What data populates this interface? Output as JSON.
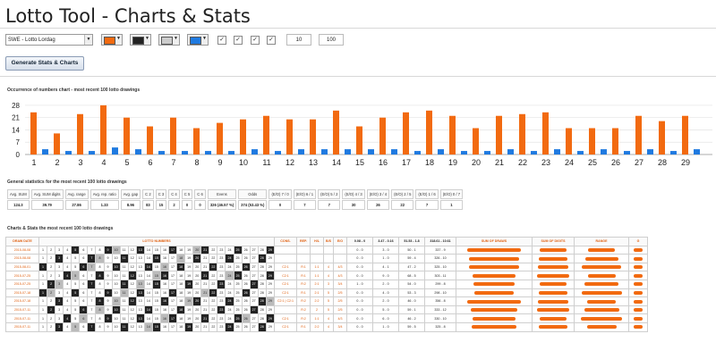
{
  "app": {
    "title": "Lotto Tool - Charts & Stats"
  },
  "controls": {
    "lottery_select": "SWE - Lotto Lordag",
    "colors": [
      "#f26a10",
      "#222222",
      "#cccccc",
      "#1f7ae0"
    ],
    "checkbox_mark": "✓",
    "field1": "10",
    "field2": "100",
    "generate_label": "Generate Stats & Charts",
    "dropdown_arrow": "▼"
  },
  "sections": {
    "chart_title": "Occurrence of numbers chart - most recent 100 lotto drawings",
    "stats_title": "General statistics for the most recent 100 lotto drawings",
    "table_title": "Charts & Stats the most recent 100 lotto drawings"
  },
  "chart_data": {
    "type": "bar",
    "categories": [
      "1",
      "2",
      "3",
      "4",
      "5",
      "6",
      "7",
      "8",
      "9",
      "10",
      "11",
      "12",
      "13",
      "14",
      "15",
      "16",
      "17",
      "18",
      "19",
      "20",
      "21",
      "22",
      "23",
      "24",
      "25",
      "26",
      "27",
      "28",
      "29"
    ],
    "series": [
      {
        "values": [
          24,
          12,
          23,
          28,
          21,
          16,
          21,
          15,
          18,
          20,
          22,
          20,
          20,
          25,
          16,
          21,
          24,
          25,
          22,
          15,
          22,
          23,
          24,
          15,
          15,
          15,
          22,
          19,
          22
        ],
        "color": "#f26a10"
      },
      {
        "values": [
          3,
          2,
          2,
          4,
          3,
          2,
          2,
          2,
          2,
          3,
          2,
          3,
          3,
          3,
          3,
          3,
          2,
          3,
          2,
          2,
          3,
          2,
          3,
          2,
          3,
          2,
          3,
          2,
          3
        ],
        "color": "#1f7ae0"
      }
    ],
    "yticks": [
      0,
      7,
      14,
      21,
      28
    ],
    "ylim": [
      0,
      30
    ]
  },
  "stats": {
    "headers": [
      "Avg. SUM",
      "Avg. SUM digits",
      "Avg. range",
      "Avg. rep. ratio",
      "Avg. gap",
      "C 2",
      "C 3",
      "C 4",
      "C 5",
      "C 6",
      "Evens",
      "Odds",
      "(E/O) 7 / 0",
      "(E/O) 6 / 1",
      "(E/O) 5 / 2",
      "(E/O) 4 / 3",
      "(E/O) 3 / 4",
      "(E/O) 2 / 5",
      "(E/O) 1 / 6",
      "(E/O) 0 / 7"
    ],
    "values": [
      "124.3",
      "39.79",
      "27.86",
      "1.33",
      "8.96",
      "83",
      "15",
      "2",
      "0",
      "0",
      "326 (46.57 %)",
      "374 (53.43 %)",
      "0",
      "7",
      "7",
      "30",
      "26",
      "22",
      "7",
      "1"
    ]
  },
  "table": {
    "headers": {
      "date": "DRAW DATE",
      "numbers": "LOTTO NUMBERS",
      "cons": "CONS.",
      "rep": "REP.",
      "hl": "H/L",
      "bs": "B/S",
      "eo": "E/O",
      "r1": "0.08 - 0",
      "r2": "3.47 - 0.16",
      "r3": "51.53 - 1.8",
      "r4": "318.61 - 10.61",
      "sum": "SUM OF DRAWS",
      "sumd": "SUM OF DIGITS",
      "range": "RANGE",
      "gap": "G"
    },
    "rows": [
      {
        "date": "2015-08-08",
        "cons": "",
        "rep": "",
        "hl": "",
        "bs": "",
        "eo": "",
        "a": "0 - 0",
        "b": "3 - 0",
        "c": "50 - 1",
        "d": "337 - 9",
        "sum": "",
        "sumd": "",
        "rng": ""
      },
      {
        "date": "2015-08-08",
        "cons": "",
        "rep": "",
        "hl": "",
        "bs": "",
        "eo": "",
        "a": "0 - 0",
        "b": "1 - 0",
        "c": "59 - 4",
        "d": "326 - 10",
        "sum": "",
        "sumd": "",
        "rng": ""
      },
      {
        "date": "2015-08-01",
        "cons": "C2:1",
        "rep": "R:1",
        "hl": "1:1",
        "bs": "4",
        "eo": "4/3",
        "a": "0 - 0",
        "b": "4 - 1",
        "c": "47 - 2",
        "d": "325 - 10",
        "sum": "",
        "sumd": "",
        "rng": ""
      },
      {
        "date": "2015-07-25",
        "cons": "C2:1",
        "rep": "R:1",
        "hl": "1:1",
        "bs": "4",
        "eo": "4/3",
        "a": "0 - 0",
        "b": "9 - 0",
        "c": "68 - 5",
        "d": "303 - 11",
        "sum": "",
        "sumd": "",
        "rng": ""
      },
      {
        "date": "2015-07-25",
        "cons": "C2:1",
        "rep": "R:2",
        "hl": "2:1",
        "bs": "3",
        "eo": "3/4",
        "a": "1 - 0",
        "b": "2 - 0",
        "c": "54 - 0",
        "d": "299 - 8",
        "sum": "",
        "sumd": "",
        "rng": ""
      },
      {
        "date": "2015-07-18",
        "cons": "C2:1",
        "rep": "R:1",
        "hl": "2:1",
        "bs": "5",
        "eo": "2/5",
        "a": "0 - 0",
        "b": "4 - 0",
        "c": "53 - 3",
        "d": "298 - 10",
        "sum": "",
        "sumd": "",
        "rng": ""
      },
      {
        "date": "2015-07-18",
        "cons": "C2:1 | C2:1",
        "rep": "R:2",
        "hl": "2:2",
        "bs": "5",
        "eo": "2/5",
        "a": "0 - 0",
        "b": "2 - 0",
        "c": "46 - 0",
        "d": "356 - 8",
        "sum": "",
        "sumd": "",
        "rng": ""
      },
      {
        "date": "2015-07-11",
        "cons": "",
        "rep": "R:2",
        "hl": "2",
        "bs": "5",
        "eo": "2/5",
        "a": "0 - 0",
        "b": "5 - 0",
        "c": "59 - 1",
        "d": "333 - 12",
        "sum": "",
        "sumd": "",
        "rng": ""
      },
      {
        "date": "2015-07-11",
        "cons": "C2:1",
        "rep": "R:2",
        "hl": "1:1",
        "bs": "4",
        "eo": "4/3",
        "a": "0 - 0",
        "b": "6 - 0",
        "c": "46 - 2",
        "d": "330 - 10",
        "sum": "",
        "sumd": "",
        "rng": ""
      },
      {
        "date": "2015-07-11",
        "cons": "C2:1",
        "rep": "R:1",
        "hl": "2:2",
        "bs": "4",
        "eo": "3/4",
        "a": "0 - 0",
        "b": "1 - 0",
        "c": "59 - 5",
        "d": "325 - 8",
        "sum": "",
        "sumd": "",
        "rng": ""
      }
    ]
  }
}
